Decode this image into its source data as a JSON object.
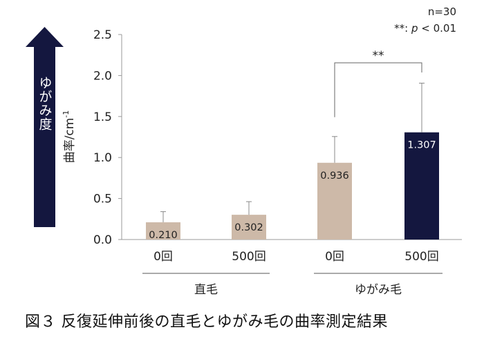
{
  "chart_data": {
    "type": "bar",
    "title": "",
    "ylabel": "曲率/cm",
    "ylabel_sup": "-1",
    "ylim": [
      0,
      2.5
    ],
    "yticks": [
      "0.0",
      "0.5",
      "1.0",
      "1.5",
      "2.0",
      "2.5"
    ],
    "categories": [
      "0回",
      "500回",
      "0回",
      "500回"
    ],
    "groups": [
      {
        "label": "直毛",
        "categories": [
          0,
          1
        ]
      },
      {
        "label": "ゆがみ毛",
        "categories": [
          2,
          3
        ]
      }
    ],
    "values": [
      0.21,
      0.302,
      0.936,
      1.307
    ],
    "value_labels": [
      "0.210",
      "0.302",
      "0.936",
      "1.307"
    ],
    "error_plus": [
      0.13,
      0.16,
      0.32,
      0.6
    ],
    "bar_colors": [
      "#cdb9a8",
      "#cdb9a8",
      "#cdb9a8",
      "#14173f"
    ],
    "value_label_colors": [
      "#222222",
      "#222222",
      "#222222",
      "#ffffff"
    ],
    "significance": {
      "from": 2,
      "to": 3,
      "label": "**"
    },
    "arrow_label": "ゆがみ度",
    "arrow_color": "#14173f",
    "note_n": "n=30",
    "note_sig_prefix": "**: ",
    "note_sig_p": "p",
    "note_sig_rest": " < 0.01"
  },
  "caption": "図３ 反復延伸前後の直毛とゆがみ毛の曲率測定結果"
}
